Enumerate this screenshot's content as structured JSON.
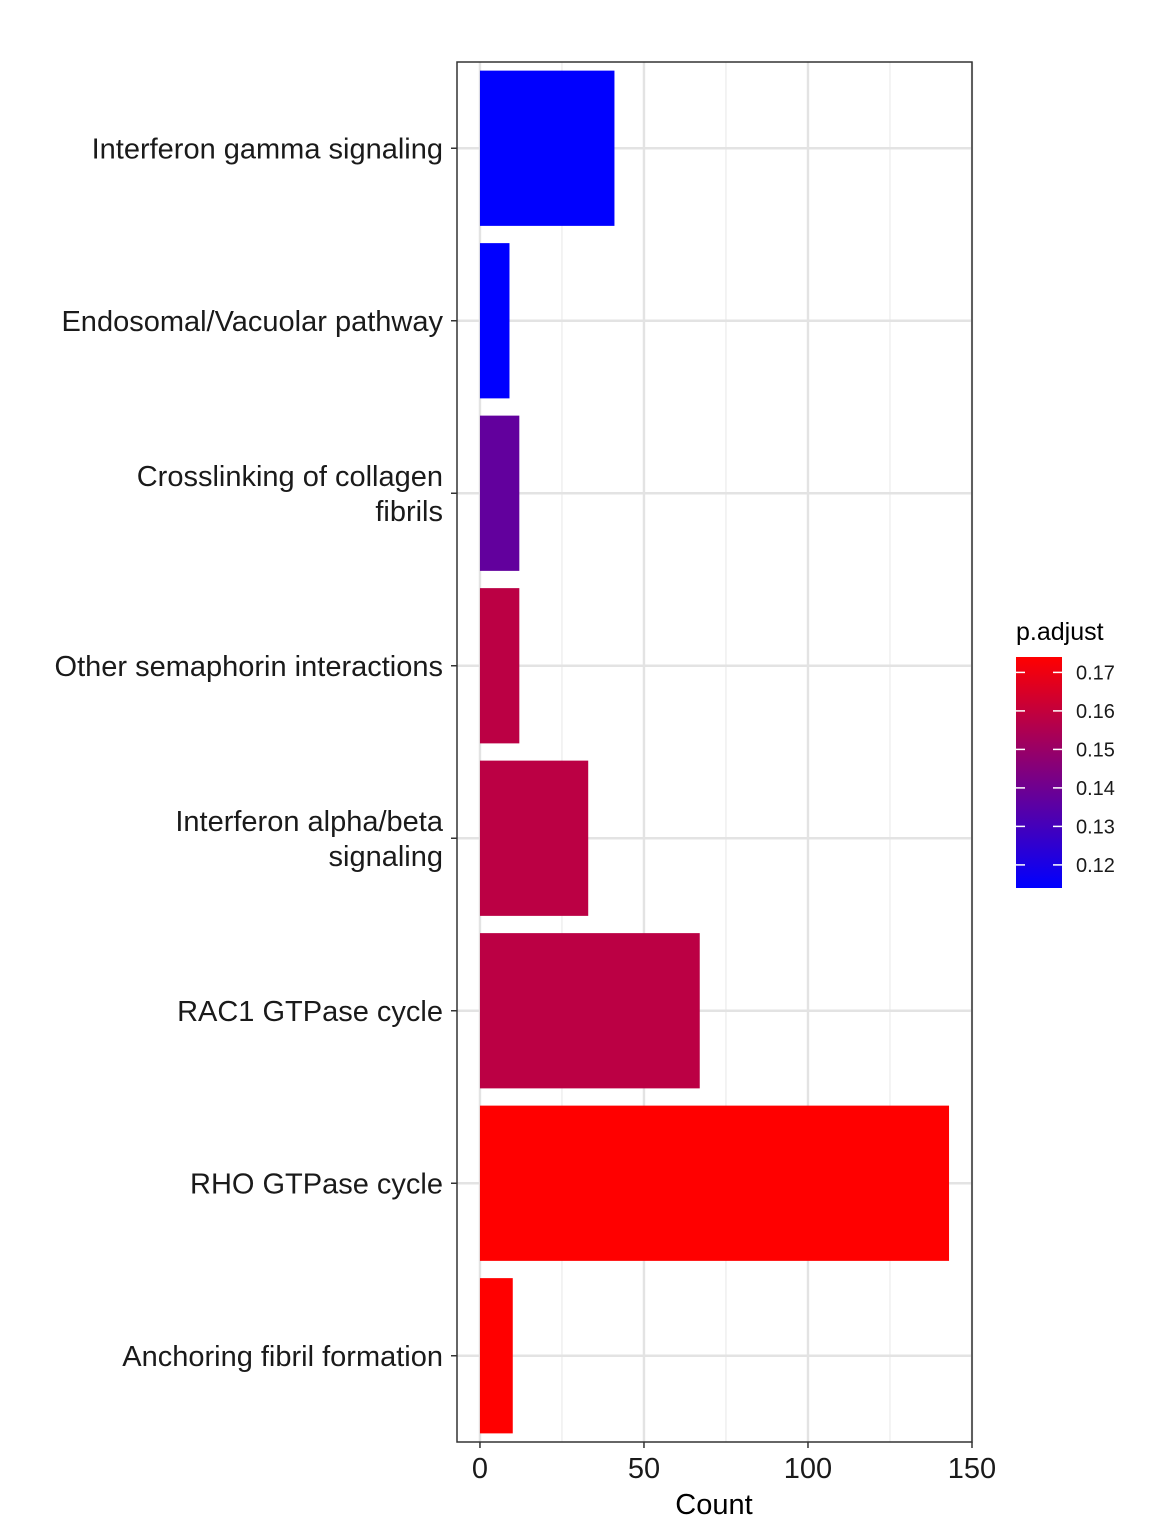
{
  "chart_data": {
    "type": "bar",
    "orientation": "horizontal",
    "categories": [
      [
        "Interferon gamma signaling"
      ],
      [
        "Endosomal/Vacuolar pathway"
      ],
      [
        "Crosslinking of collagen",
        "fibrils"
      ],
      [
        "Other semaphorin interactions"
      ],
      [
        "Interferon alpha/beta",
        "signaling"
      ],
      [
        "RAC1 GTPase cycle"
      ],
      [
        "RHO GTPase cycle"
      ],
      [
        "Anchoring fibril formation"
      ]
    ],
    "values": [
      41,
      9,
      12,
      12,
      33,
      67,
      143,
      10
    ],
    "p_adjust": [
      0.114,
      0.114,
      0.137,
      0.158,
      0.158,
      0.158,
      0.174,
      0.174
    ],
    "xlabel": "Count",
    "ylabel": "",
    "xlim": [
      -7,
      150
    ],
    "xticks": [
      "0",
      "50",
      "100",
      "150"
    ],
    "grid": true,
    "legend": {
      "title": "p.adjust",
      "position": "right",
      "ticks": [
        "0.17",
        "0.16",
        "0.15",
        "0.14",
        "0.13",
        "0.12"
      ],
      "tick_values": [
        0.17,
        0.16,
        0.15,
        0.14,
        0.13,
        0.12
      ],
      "range": [
        0.114,
        0.174
      ],
      "low_color": "#0000ff",
      "high_color": "#ff0000"
    }
  }
}
